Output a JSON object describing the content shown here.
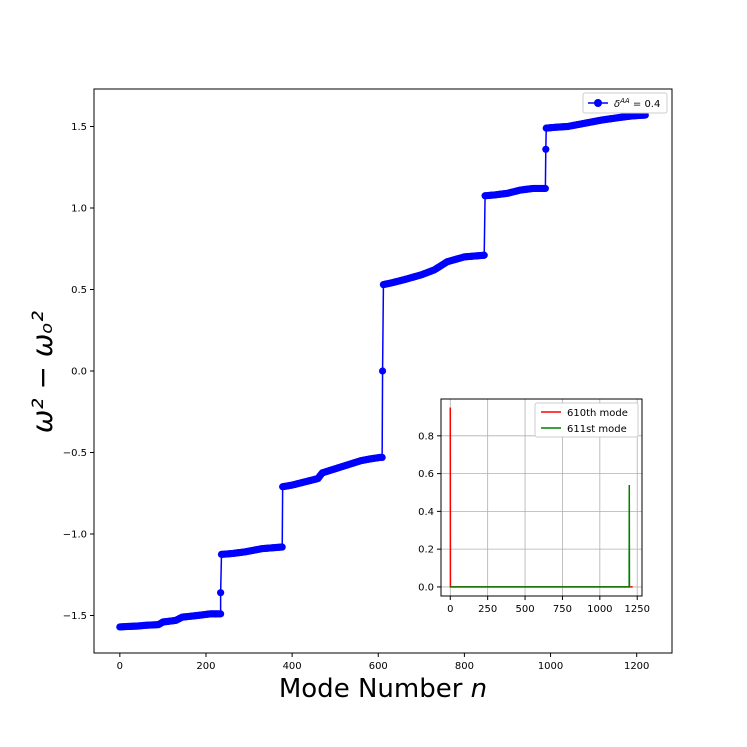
{
  "chart_data": [
    {
      "type": "line",
      "xlabel": "Mode Number",
      "xlabel_var": "n",
      "ylabel": "ω² − ωₒ²",
      "xlim": [
        -60,
        1282
      ],
      "ylim": [
        -1.73,
        1.73
      ],
      "xticks": [
        0,
        200,
        400,
        600,
        800,
        1000,
        1200
      ],
      "yticks": [
        -1.5,
        -1.0,
        -0.5,
        0.0,
        0.5,
        1.0,
        1.5
      ],
      "ytick_labels": [
        "−1.5",
        "−1.0",
        "−0.5",
        "0.0",
        "0.5",
        "1.0",
        "1.5"
      ],
      "legend": {
        "position": "top-right",
        "entries": [
          {
            "label_prefix": "δ",
            "label_sup": "AA",
            "label_suffix": " = 0.4",
            "color": "#0000ff",
            "marker": "circle"
          }
        ]
      },
      "series": [
        {
          "name": "δ^AA = 0.4",
          "color": "#0000ff",
          "x": [
            0,
            20,
            40,
            60,
            90,
            100,
            130,
            145,
            180,
            210,
            225,
            234,
            234,
            236,
            260,
            290,
            330,
            376,
            377,
            378,
            400,
            430,
            460,
            470,
            500,
            530,
            560,
            580,
            605,
            609,
            610,
            612,
            630,
            660,
            700,
            730,
            760,
            800,
            845,
            846,
            848,
            870,
            900,
            930,
            960,
            988,
            989,
            990,
            991,
            1010,
            1040,
            1080,
            1120,
            1160,
            1190,
            1220
          ],
          "y": [
            -1.57,
            -1.567,
            -1.565,
            -1.56,
            -1.556,
            -1.54,
            -1.53,
            -1.51,
            -1.5,
            -1.49,
            -1.49,
            -1.49,
            -1.36,
            -1.125,
            -1.12,
            -1.11,
            -1.09,
            -1.08,
            -1.08,
            -0.71,
            -0.7,
            -0.68,
            -0.66,
            -0.625,
            -0.6,
            -0.575,
            -0.55,
            -0.54,
            -0.53,
            -0.53,
            0.0,
            0.53,
            0.54,
            0.56,
            0.59,
            0.62,
            0.67,
            0.7,
            0.71,
            0.71,
            1.075,
            1.08,
            1.09,
            1.11,
            1.12,
            1.12,
            1.36,
            1.49,
            1.49,
            1.495,
            1.5,
            1.52,
            1.54,
            1.555,
            1.565,
            1.57
          ]
        }
      ]
    },
    {
      "type": "line",
      "xlim": [
        -62,
        1282
      ],
      "ylim": [
        -0.048,
        0.995
      ],
      "xticks": [
        0,
        250,
        500,
        750,
        1000,
        1250
      ],
      "yticks": [
        0.0,
        0.2,
        0.4,
        0.6,
        0.8
      ],
      "ytick_labels": [
        "0.0",
        "0.2",
        "0.4",
        "0.6",
        "0.8"
      ],
      "grid": true,
      "legend": {
        "position": "top-right"
      },
      "series": [
        {
          "name": "610th mode",
          "color": "#ff0000",
          "x": [
            0,
            1,
            2,
            3,
            5,
            1220
          ],
          "y": [
            0.95,
            0.0,
            0.0,
            0.0,
            0.0,
            0.0
          ]
        },
        {
          "name": "611st mode",
          "color": "#008000",
          "x": [
            0,
            1190,
            1196,
            1197,
            1198
          ],
          "y": [
            0.0,
            0.0,
            0.0,
            0.54,
            0.0
          ]
        }
      ]
    }
  ]
}
